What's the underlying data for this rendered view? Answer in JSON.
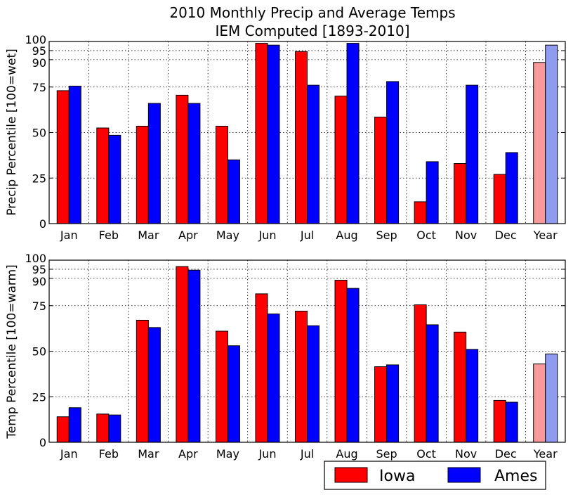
{
  "title": [
    "2010 Monthly Precip and Average Temps",
    "IEM Computed [1893-2010]"
  ],
  "colors": {
    "iowa": "#ff0000",
    "ames": "#0000ff",
    "iowa_year": "#f99a9a",
    "ames_year": "#8f9bef"
  },
  "legend": {
    "position": "bottom-right",
    "entries": [
      "Iowa",
      "Ames"
    ]
  },
  "chart_data": [
    {
      "type": "bar",
      "categories": [
        "Jan",
        "Feb",
        "Mar",
        "Apr",
        "May",
        "Jun",
        "Jul",
        "Aug",
        "Sep",
        "Oct",
        "Nov",
        "Dec",
        "Year"
      ],
      "series": [
        {
          "name": "Iowa",
          "values": [
            73,
            52.5,
            53.5,
            70.5,
            53.5,
            99,
            94.5,
            70,
            58.5,
            12,
            33,
            27,
            88.5
          ]
        },
        {
          "name": "Ames",
          "values": [
            75.5,
            48.5,
            66,
            66,
            35,
            98,
            76,
            99,
            78,
            34,
            76,
            39,
            98
          ]
        }
      ],
      "ylabel": "Precip Percentile [100=wet]",
      "ylim": [
        0,
        100
      ],
      "yticks": [
        0,
        25,
        50,
        75,
        90,
        95,
        100
      ],
      "grid": true
    },
    {
      "type": "bar",
      "categories": [
        "Jan",
        "Feb",
        "Mar",
        "Apr",
        "May",
        "Jun",
        "Jul",
        "Aug",
        "Sep",
        "Oct",
        "Nov",
        "Dec",
        "Year"
      ],
      "series": [
        {
          "name": "Iowa",
          "values": [
            14,
            15.5,
            67,
            96.5,
            61,
            81.5,
            72,
            89,
            41.5,
            75.5,
            60.5,
            23,
            43
          ]
        },
        {
          "name": "Ames",
          "values": [
            19,
            15,
            63,
            94.5,
            53,
            70.5,
            64,
            84.5,
            42.5,
            64.5,
            51,
            22,
            48.5
          ]
        }
      ],
      "ylabel": "Temp Percentile [100=warm]",
      "ylim": [
        0,
        100
      ],
      "yticks": [
        0,
        25,
        50,
        75,
        90,
        95,
        100
      ],
      "grid": true
    }
  ]
}
